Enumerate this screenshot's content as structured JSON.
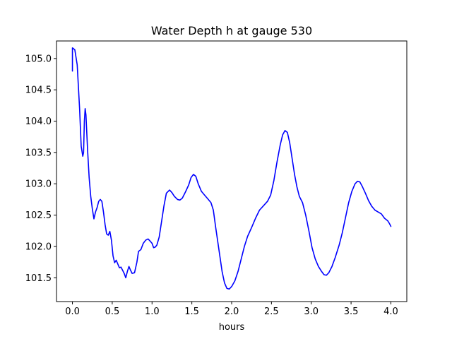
{
  "chart_data": {
    "type": "line",
    "title": "Water Depth h at gauge 530",
    "xlabel": "hours",
    "ylabel": "",
    "xlim": [
      -0.2,
      4.2
    ],
    "ylim": [
      101.12,
      105.28
    ],
    "x_ticks": [
      0.0,
      0.5,
      1.0,
      1.5,
      2.0,
      2.5,
      3.0,
      3.5,
      4.0
    ],
    "x_tick_labels": [
      "0.0",
      "0.5",
      "1.0",
      "1.5",
      "2.0",
      "2.5",
      "3.0",
      "3.5",
      "4.0"
    ],
    "y_ticks": [
      101.5,
      102.0,
      102.5,
      103.0,
      103.5,
      104.0,
      104.5,
      105.0
    ],
    "y_tick_labels": [
      "101.5",
      "102.0",
      "102.5",
      "103.0",
      "103.5",
      "104.0",
      "104.5",
      "105.0"
    ],
    "grid": false,
    "series": [
      {
        "name": "",
        "color": "#0000ff",
        "points": [
          [
            0.0,
            104.8
          ],
          [
            0.0,
            105.17
          ],
          [
            0.03,
            105.14
          ],
          [
            0.06,
            104.9
          ],
          [
            0.09,
            104.2
          ],
          [
            0.11,
            103.6
          ],
          [
            0.13,
            103.44
          ],
          [
            0.14,
            103.5
          ],
          [
            0.15,
            104.0
          ],
          [
            0.16,
            104.2
          ],
          [
            0.17,
            104.1
          ],
          [
            0.19,
            103.55
          ],
          [
            0.21,
            103.1
          ],
          [
            0.23,
            102.8
          ],
          [
            0.25,
            102.6
          ],
          [
            0.27,
            102.44
          ],
          [
            0.29,
            102.55
          ],
          [
            0.31,
            102.62
          ],
          [
            0.33,
            102.72
          ],
          [
            0.35,
            102.75
          ],
          [
            0.37,
            102.72
          ],
          [
            0.39,
            102.55
          ],
          [
            0.41,
            102.35
          ],
          [
            0.43,
            102.2
          ],
          [
            0.45,
            102.18
          ],
          [
            0.47,
            102.24
          ],
          [
            0.49,
            102.1
          ],
          [
            0.51,
            101.85
          ],
          [
            0.53,
            101.74
          ],
          [
            0.55,
            101.78
          ],
          [
            0.57,
            101.72
          ],
          [
            0.59,
            101.66
          ],
          [
            0.61,
            101.67
          ],
          [
            0.63,
            101.62
          ],
          [
            0.65,
            101.57
          ],
          [
            0.67,
            101.5
          ],
          [
            0.69,
            101.6
          ],
          [
            0.71,
            101.68
          ],
          [
            0.73,
            101.62
          ],
          [
            0.75,
            101.57
          ],
          [
            0.78,
            101.58
          ],
          [
            0.81,
            101.75
          ],
          [
            0.83,
            101.92
          ],
          [
            0.86,
            101.95
          ],
          [
            0.89,
            102.05
          ],
          [
            0.92,
            102.1
          ],
          [
            0.95,
            102.12
          ],
          [
            0.98,
            102.08
          ],
          [
            1.0,
            102.05
          ],
          [
            1.02,
            101.98
          ],
          [
            1.04,
            101.99
          ],
          [
            1.06,
            102.02
          ],
          [
            1.09,
            102.15
          ],
          [
            1.12,
            102.4
          ],
          [
            1.15,
            102.65
          ],
          [
            1.18,
            102.85
          ],
          [
            1.22,
            102.9
          ],
          [
            1.25,
            102.86
          ],
          [
            1.28,
            102.8
          ],
          [
            1.32,
            102.75
          ],
          [
            1.35,
            102.74
          ],
          [
            1.38,
            102.77
          ],
          [
            1.42,
            102.87
          ],
          [
            1.46,
            102.98
          ],
          [
            1.49,
            103.1
          ],
          [
            1.52,
            103.15
          ],
          [
            1.55,
            103.12
          ],
          [
            1.58,
            103.0
          ],
          [
            1.62,
            102.88
          ],
          [
            1.66,
            102.82
          ],
          [
            1.7,
            102.76
          ],
          [
            1.74,
            102.7
          ],
          [
            1.77,
            102.58
          ],
          [
            1.8,
            102.3
          ],
          [
            1.84,
            101.95
          ],
          [
            1.88,
            101.6
          ],
          [
            1.91,
            101.42
          ],
          [
            1.94,
            101.33
          ],
          [
            1.97,
            101.32
          ],
          [
            2.0,
            101.36
          ],
          [
            2.04,
            101.45
          ],
          [
            2.08,
            101.6
          ],
          [
            2.12,
            101.8
          ],
          [
            2.16,
            102.0
          ],
          [
            2.2,
            102.16
          ],
          [
            2.25,
            102.3
          ],
          [
            2.3,
            102.45
          ],
          [
            2.35,
            102.58
          ],
          [
            2.4,
            102.65
          ],
          [
            2.45,
            102.72
          ],
          [
            2.49,
            102.82
          ],
          [
            2.53,
            103.05
          ],
          [
            2.57,
            103.35
          ],
          [
            2.61,
            103.62
          ],
          [
            2.64,
            103.78
          ],
          [
            2.67,
            103.85
          ],
          [
            2.7,
            103.82
          ],
          [
            2.73,
            103.65
          ],
          [
            2.76,
            103.4
          ],
          [
            2.79,
            103.15
          ],
          [
            2.82,
            102.95
          ],
          [
            2.85,
            102.8
          ],
          [
            2.89,
            102.7
          ],
          [
            2.93,
            102.5
          ],
          [
            2.97,
            102.25
          ],
          [
            3.01,
            101.98
          ],
          [
            3.05,
            101.8
          ],
          [
            3.09,
            101.68
          ],
          [
            3.13,
            101.6
          ],
          [
            3.16,
            101.55
          ],
          [
            3.19,
            101.54
          ],
          [
            3.22,
            101.58
          ],
          [
            3.26,
            101.68
          ],
          [
            3.3,
            101.82
          ],
          [
            3.35,
            102.02
          ],
          [
            3.39,
            102.22
          ],
          [
            3.43,
            102.46
          ],
          [
            3.47,
            102.7
          ],
          [
            3.51,
            102.88
          ],
          [
            3.55,
            103.0
          ],
          [
            3.58,
            103.04
          ],
          [
            3.61,
            103.03
          ],
          [
            3.64,
            102.96
          ],
          [
            3.68,
            102.85
          ],
          [
            3.72,
            102.73
          ],
          [
            3.76,
            102.64
          ],
          [
            3.8,
            102.58
          ],
          [
            3.84,
            102.55
          ],
          [
            3.88,
            102.52
          ],
          [
            3.92,
            102.45
          ],
          [
            3.96,
            102.41
          ],
          [
            3.98,
            102.37
          ],
          [
            4.0,
            102.32
          ]
        ]
      }
    ]
  }
}
